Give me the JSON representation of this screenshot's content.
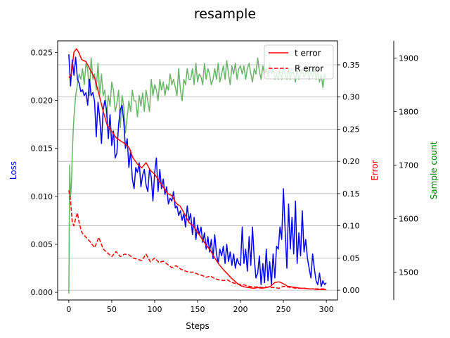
{
  "chart_data": {
    "type": "line",
    "title": "resample",
    "xlabel": "Steps",
    "xlim": [
      -13,
      313
    ],
    "xticks": [
      0,
      50,
      100,
      150,
      200,
      250,
      300
    ],
    "grid": "horizontal grid lines on the Error axis",
    "legend_position": "top-right",
    "axes": {
      "loss": {
        "label": "Loss",
        "side": "left",
        "color": "#0000ff",
        "ylim": [
          -0.0008,
          0.0262
        ],
        "ticks": [
          0.0,
          0.005,
          0.01,
          0.015,
          0.02,
          0.025
        ],
        "tick_labels": [
          "0.000",
          "0.005",
          "0.010",
          "0.015",
          "0.020",
          "0.025"
        ]
      },
      "error": {
        "label": "Error",
        "side": "right",
        "color": "#ff0000",
        "ylim": [
          -0.0152,
          0.3872
        ],
        "ticks": [
          0.0,
          0.05,
          0.1,
          0.15,
          0.2,
          0.25,
          0.3,
          0.35
        ],
        "tick_labels": [
          "0.00",
          "0.05",
          "0.10",
          "0.15",
          "0.20",
          "0.25",
          "0.30",
          "0.35"
        ]
      },
      "samples": {
        "label": "Sample count",
        "side": "right-outer",
        "color": "#008000",
        "ylim": [
          1448,
          1932
        ],
        "ticks": [
          1500,
          1600,
          1700,
          1800,
          1900
        ],
        "tick_labels": [
          "1500",
          "1600",
          "1700",
          "1800",
          "1900"
        ]
      }
    },
    "series": [
      {
        "name": "t error",
        "axis": "error",
        "color": "#ff0000",
        "style": "solid",
        "legend": true,
        "x": [
          0,
          3,
          6,
          9,
          12,
          15,
          20,
          25,
          30,
          35,
          40,
          45,
          50,
          55,
          60,
          65,
          70,
          75,
          80,
          85,
          90,
          95,
          100,
          105,
          110,
          115,
          120,
          125,
          130,
          135,
          140,
          145,
          150,
          155,
          160,
          165,
          170,
          175,
          180,
          185,
          190,
          195,
          200,
          205,
          210,
          215,
          220,
          225,
          230,
          235,
          240,
          245,
          250,
          255,
          260,
          265,
          270,
          275,
          280,
          285,
          290,
          295,
          300
        ],
        "y": [
          0.33,
          0.335,
          0.37,
          0.375,
          0.368,
          0.358,
          0.355,
          0.342,
          0.33,
          0.305,
          0.278,
          0.255,
          0.247,
          0.237,
          0.232,
          0.228,
          0.222,
          0.205,
          0.196,
          0.19,
          0.198,
          0.186,
          0.18,
          0.17,
          0.16,
          0.15,
          0.147,
          0.135,
          0.13,
          0.118,
          0.105,
          0.1,
          0.09,
          0.08,
          0.07,
          0.062,
          0.05,
          0.04,
          0.032,
          0.025,
          0.018,
          0.012,
          0.007,
          0.005,
          0.004,
          0.003,
          0.004,
          0.003,
          0.004,
          0.006,
          0.012,
          0.013,
          0.01,
          0.006,
          0.005,
          0.004,
          0.003,
          0.003,
          0.002,
          0.002,
          0.001,
          0.001,
          0.001
        ]
      },
      {
        "name": "R error",
        "axis": "error",
        "color": "#ff0000",
        "style": "dashed",
        "legend": true,
        "x": [
          0,
          2,
          4,
          6,
          8,
          10,
          12,
          15,
          20,
          25,
          30,
          35,
          40,
          45,
          50,
          55,
          60,
          65,
          70,
          75,
          80,
          85,
          90,
          95,
          100,
          105,
          110,
          115,
          120,
          125,
          130,
          135,
          140,
          145,
          150,
          155,
          160,
          165,
          170,
          175,
          180,
          185,
          190,
          195,
          200,
          205,
          210,
          215,
          220,
          225,
          230,
          235,
          240,
          245,
          250,
          255,
          260,
          265,
          270,
          275,
          280,
          285,
          290,
          295,
          300
        ],
        "y": [
          0.155,
          0.14,
          0.105,
          0.1,
          0.112,
          0.12,
          0.105,
          0.09,
          0.082,
          0.075,
          0.066,
          0.082,
          0.064,
          0.058,
          0.052,
          0.06,
          0.052,
          0.056,
          0.055,
          0.05,
          0.048,
          0.046,
          0.056,
          0.044,
          0.05,
          0.043,
          0.045,
          0.04,
          0.035,
          0.038,
          0.033,
          0.03,
          0.028,
          0.028,
          0.025,
          0.023,
          0.02,
          0.022,
          0.018,
          0.016,
          0.015,
          0.016,
          0.012,
          0.01,
          0.009,
          0.008,
          0.006,
          0.005,
          0.005,
          0.004,
          0.005,
          0.004,
          0.004,
          0.003,
          0.006,
          0.005,
          0.004,
          0.003,
          0.003,
          0.003,
          0.002,
          0.002,
          0.002,
          0.002,
          0.002
        ]
      },
      {
        "name": "Loss",
        "axis": "loss",
        "color": "#0000ff",
        "style": "solid",
        "legend": false,
        "x": [
          0,
          2,
          4,
          6,
          8,
          10,
          12,
          14,
          16,
          18,
          20,
          22,
          24,
          26,
          28,
          30,
          32,
          34,
          36,
          38,
          40,
          42,
          44,
          46,
          48,
          50,
          52,
          54,
          56,
          58,
          60,
          62,
          64,
          66,
          68,
          70,
          72,
          74,
          76,
          78,
          80,
          82,
          84,
          86,
          88,
          90,
          92,
          94,
          96,
          98,
          100,
          102,
          104,
          106,
          108,
          110,
          112,
          114,
          116,
          118,
          120,
          122,
          124,
          126,
          128,
          130,
          132,
          134,
          136,
          138,
          140,
          142,
          144,
          146,
          148,
          150,
          152,
          154,
          156,
          158,
          160,
          162,
          164,
          166,
          168,
          170,
          172,
          174,
          176,
          178,
          180,
          182,
          184,
          186,
          188,
          190,
          192,
          194,
          196,
          198,
          200,
          202,
          204,
          206,
          208,
          210,
          212,
          214,
          216,
          218,
          220,
          222,
          224,
          226,
          228,
          230,
          232,
          234,
          236,
          238,
          240,
          242,
          244,
          246,
          248,
          250,
          252,
          254,
          256,
          258,
          260,
          262,
          264,
          266,
          268,
          270,
          272,
          274,
          276,
          278,
          280,
          282,
          284,
          286,
          288,
          290,
          292,
          294,
          296,
          298,
          300
        ],
        "y": [
          0.0248,
          0.0215,
          0.0242,
          0.0226,
          0.0245,
          0.0222,
          0.0218,
          0.0209,
          0.0211,
          0.0205,
          0.0208,
          0.0195,
          0.0222,
          0.0205,
          0.0208,
          0.0199,
          0.0162,
          0.0198,
          0.0182,
          0.0155,
          0.019,
          0.02,
          0.019,
          0.016,
          0.0185,
          0.0153,
          0.0168,
          0.014,
          0.0145,
          0.0175,
          0.019,
          0.0195,
          0.0178,
          0.015,
          0.016,
          0.013,
          0.0148,
          0.0118,
          0.0108,
          0.013,
          0.0125,
          0.0135,
          0.011,
          0.0122,
          0.0128,
          0.0112,
          0.0105,
          0.0128,
          0.012,
          0.0095,
          0.0125,
          0.014,
          0.0105,
          0.0128,
          0.0108,
          0.0118,
          0.0102,
          0.011,
          0.0092,
          0.0098,
          0.0095,
          0.0105,
          0.0088,
          0.009,
          0.008,
          0.0085,
          0.0075,
          0.0082,
          0.0068,
          0.009,
          0.0075,
          0.0082,
          0.006,
          0.0078,
          0.0055,
          0.007,
          0.006,
          0.0068,
          0.0052,
          0.0062,
          0.0045,
          0.0058,
          0.0042,
          0.0055,
          0.0035,
          0.006,
          0.004,
          0.003,
          0.0045,
          0.0038,
          0.0048,
          0.003,
          0.005,
          0.0032,
          0.0042,
          0.0028,
          0.004,
          0.0025,
          0.0035,
          0.003,
          0.0028,
          0.0068,
          0.003,
          0.0045,
          0.0022,
          0.0058,
          0.0028,
          0.0068,
          0.0035,
          0.0015,
          0.002,
          0.0038,
          0.0008,
          0.003,
          0.001,
          0.0045,
          0.0012,
          0.0032,
          0.0008,
          0.004,
          0.0015,
          0.0048,
          0.0045,
          0.0068,
          0.0055,
          0.0108,
          0.0065,
          0.0025,
          0.0092,
          0.0045,
          0.0078,
          0.004,
          0.0095,
          0.003,
          0.0062,
          0.0038,
          0.0085,
          0.0042,
          0.0055,
          0.0035,
          0.0025,
          0.0015,
          0.004,
          0.0025,
          0.0012,
          0.0008,
          0.002,
          0.0006,
          0.0012,
          0.0008,
          0.001
        ]
      },
      {
        "name": "Sample count",
        "axis": "samples",
        "color": "#6ab46a",
        "style": "solid",
        "legend": false,
        "x": [
          0,
          1,
          2,
          3,
          4,
          5,
          6,
          7,
          8,
          10,
          12,
          14,
          16,
          18,
          20,
          22,
          24,
          26,
          28,
          30,
          32,
          34,
          36,
          38,
          40,
          42,
          44,
          46,
          48,
          50,
          52,
          54,
          56,
          58,
          60,
          62,
          64,
          66,
          68,
          70,
          72,
          74,
          76,
          78,
          80,
          82,
          84,
          86,
          88,
          90,
          92,
          94,
          96,
          98,
          100,
          102,
          104,
          106,
          108,
          110,
          112,
          114,
          116,
          118,
          120,
          122,
          124,
          126,
          128,
          130,
          132,
          134,
          136,
          138,
          140,
          142,
          144,
          146,
          148,
          150,
          152,
          154,
          156,
          158,
          160,
          162,
          164,
          166,
          168,
          170,
          172,
          174,
          176,
          178,
          180,
          182,
          184,
          186,
          188,
          190,
          192,
          194,
          196,
          198,
          200,
          202,
          204,
          206,
          208,
          210,
          212,
          214,
          216,
          218,
          220,
          222,
          224,
          226,
          228,
          230,
          232,
          234,
          236,
          238,
          240,
          242,
          244,
          246,
          248,
          250,
          252,
          254,
          256,
          258,
          260,
          262,
          264,
          266,
          268,
          270,
          272,
          274,
          276,
          278,
          280,
          282,
          284,
          286,
          288,
          290,
          292,
          294,
          296,
          298,
          300
        ],
        "y": [
          1460,
          1700,
          1640,
          1660,
          1720,
          1760,
          1790,
          1810,
          1830,
          1850,
          1870,
          1860,
          1880,
          1850,
          1890,
          1880,
          1830,
          1900,
          1860,
          1870,
          1840,
          1890,
          1830,
          1870,
          1830,
          1840,
          1790,
          1830,
          1810,
          1855,
          1840,
          1800,
          1815,
          1840,
          1770,
          1830,
          1810,
          1760,
          1790,
          1820,
          1800,
          1840,
          1820,
          1820,
          1790,
          1830,
          1810,
          1835,
          1800,
          1840,
          1820,
          1800,
          1860,
          1830,
          1850,
          1840,
          1820,
          1860,
          1840,
          1855,
          1830,
          1850,
          1840,
          1870,
          1850,
          1860,
          1845,
          1830,
          1880,
          1840,
          1820,
          1860,
          1850,
          1880,
          1860,
          1860,
          1880,
          1850,
          1890,
          1855,
          1870,
          1865,
          1850,
          1890,
          1860,
          1880,
          1870,
          1850,
          1860,
          1880,
          1860,
          1890,
          1855,
          1870,
          1885,
          1860,
          1895,
          1870,
          1850,
          1885,
          1870,
          1890,
          1860,
          1880,
          1885,
          1870,
          1885,
          1860,
          1880,
          1890,
          1870,
          1855,
          1880,
          1870,
          1900,
          1875,
          1860,
          1885,
          1870,
          1880,
          1865,
          1890,
          1870,
          1880,
          1860,
          1870,
          1860,
          1880,
          1860,
          1885,
          1870,
          1860,
          1880,
          1860,
          1875,
          1870,
          1855,
          1880,
          1860,
          1870,
          1880,
          1865,
          1870,
          1880,
          1860,
          1875,
          1865,
          1880,
          1860,
          1875,
          1855,
          1870,
          1845,
          1870,
          1860
        ]
      }
    ]
  }
}
